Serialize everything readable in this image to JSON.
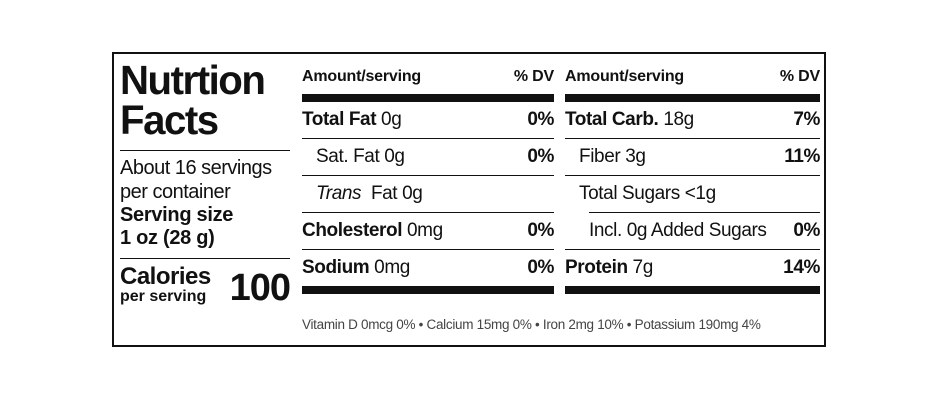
{
  "title": {
    "line1": "Nutrtion",
    "line2": "Facts"
  },
  "servings": {
    "line1": "About 16 servings",
    "line2": "per container"
  },
  "serving_size": {
    "label": "Serving size",
    "value": "1 oz (28 g)"
  },
  "calories": {
    "label": "Calories",
    "sub": "per serving",
    "value": "100"
  },
  "left_table": {
    "header_amount": "Amount/serving",
    "header_dv": "% DV",
    "rows": [
      {
        "name": "Total Fat",
        "amount": "0g",
        "dv": "0%"
      },
      {
        "name": "Sat. Fat",
        "amount": "0g",
        "dv": "0%"
      },
      {
        "name": "Trans",
        "amount": "Fat  0g",
        "dv": ""
      },
      {
        "name": "Cholesterol",
        "amount": "0mg",
        "dv": "0%"
      },
      {
        "name": "Sodium",
        "amount": "0mg",
        "dv": "0%"
      }
    ]
  },
  "right_table": {
    "header_amount": "Amount/serving",
    "header_dv": "% DV",
    "rows": [
      {
        "name": "Total Carb.",
        "amount": "18g",
        "dv": "7%"
      },
      {
        "name": "Fiber",
        "amount": "3g",
        "dv": "11%"
      },
      {
        "name": "Total Sugars",
        "amount": "<1g",
        "dv": ""
      },
      {
        "name": "Incl.",
        "amount": "0g Added Sugars",
        "dv": "0%"
      },
      {
        "name": "Protein",
        "amount": "7g",
        "dv": "14%"
      }
    ]
  },
  "footer": "Vitamin D 0mcg 0% • Calcium 15mg 0% • Iron 2mg 10% • Potassium 190mg  4%"
}
